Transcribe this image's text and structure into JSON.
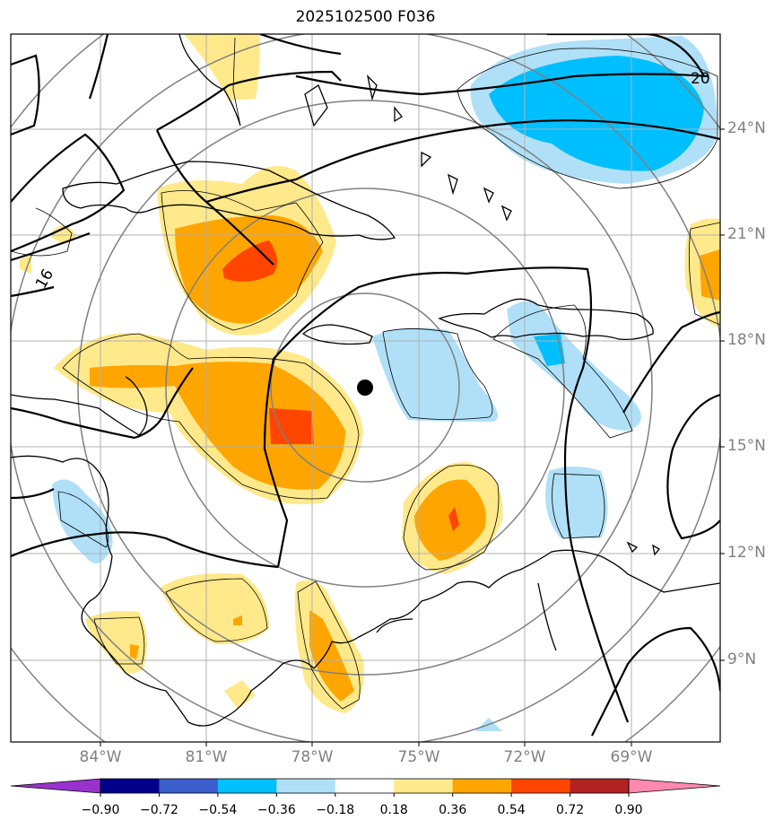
{
  "title": "2025102500 F036",
  "lat_labels": [
    "24°N",
    "21°N",
    "18°N",
    "15°N",
    "12°N",
    "9°N"
  ],
  "lon_labels": [
    "84°W",
    "81°W",
    "78°W",
    "75°W",
    "72°W",
    "69°W"
  ],
  "contour_labels": [
    "20",
    "16"
  ],
  "colorbar": {
    "ticks": [
      "−0.90",
      "−0.72",
      "−0.54",
      "−0.36",
      "−0.18",
      "0.18",
      "0.36",
      "0.54",
      "0.72",
      "0.90"
    ],
    "colors": [
      "#9932cc",
      "#00008b",
      "#3a5fcd",
      "#00bfff",
      "#b0e0f8",
      "#ffffff",
      "#ffe98a",
      "#ffa500",
      "#ff4500",
      "#b22222",
      "#ff88b0"
    ]
  },
  "colors": {
    "light_blue": "#b0e0f8",
    "blue": "#00bfff",
    "light_yellow": "#ffe98a",
    "orange": "#ffa500",
    "red_orange": "#ff4500",
    "grid": "#b0b0b0",
    "ring": "#808080"
  },
  "storm_center": {
    "lat": 16.7,
    "lon": -76.5
  }
}
